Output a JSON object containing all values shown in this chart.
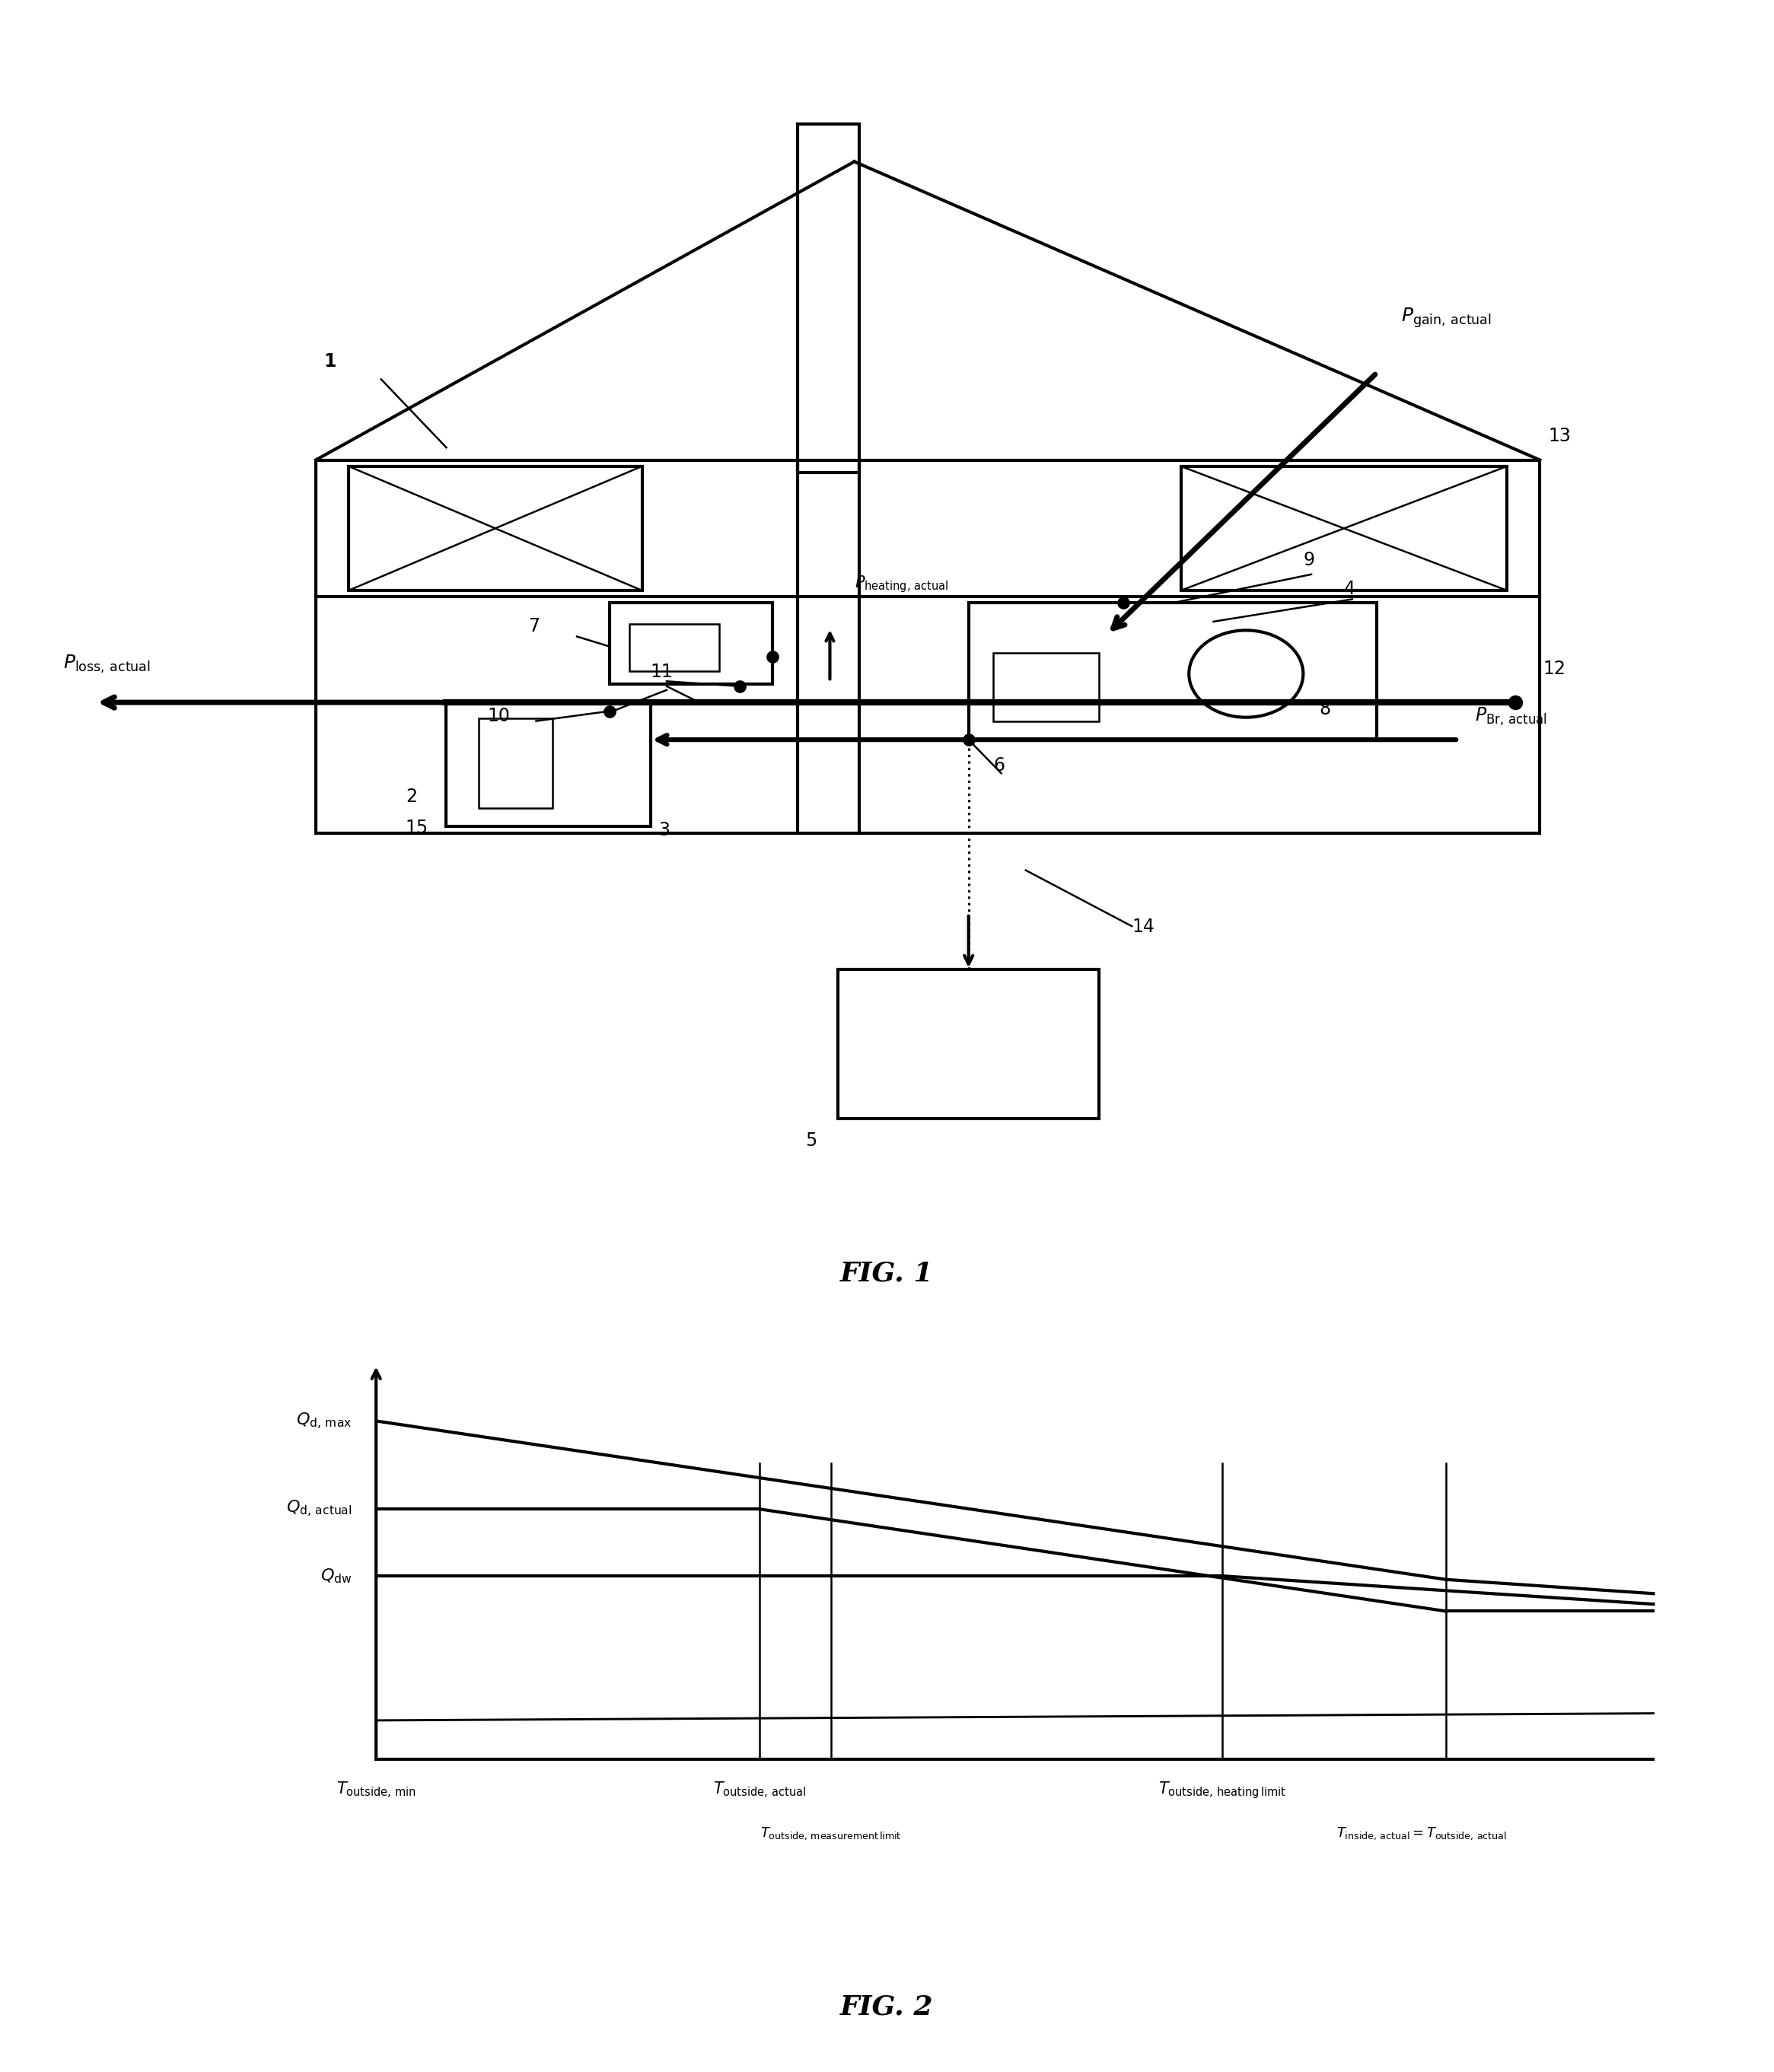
{
  "fig_width": 23.31,
  "fig_height": 27.23,
  "bg": "#ffffff",
  "lw": 3.0,
  "tlw": 1.8,
  "fig1_label": "FIG. 1",
  "fig2_label": "FIG. 2"
}
